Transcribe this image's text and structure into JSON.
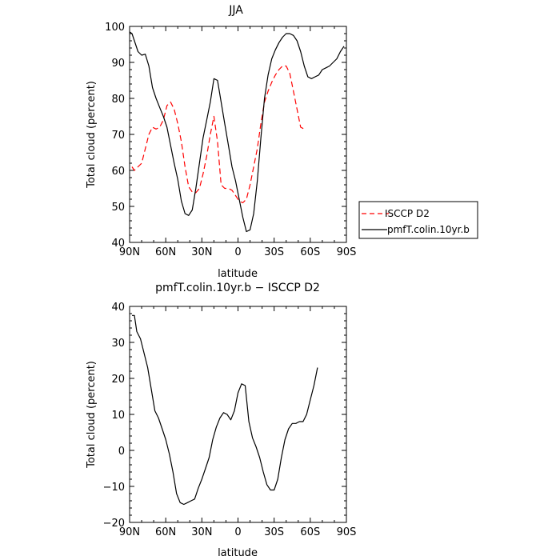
{
  "chart_data": [
    {
      "type": "line",
      "title": "JJA",
      "xlabel": "latitude",
      "ylabel": "Total cloud (percent)",
      "xlim": [
        90,
        -90
      ],
      "ylim": [
        40,
        100
      ],
      "x_ticks": [
        90,
        60,
        30,
        0,
        -30,
        -60,
        -90
      ],
      "x_tick_labels": [
        "90N",
        "60N",
        "30N",
        "0",
        "30S",
        "60S",
        "90S"
      ],
      "y_ticks": [
        40,
        50,
        60,
        70,
        80,
        90,
        100
      ],
      "y_tick_labels": [
        "40",
        "50",
        "60",
        "70",
        "80",
        "90",
        "100"
      ],
      "legend_position": "right, outside plot",
      "series": [
        {
          "name": "ISCCP D2",
          "color": "#ff0000",
          "dash": "dashed",
          "x": [
            88,
            86,
            83,
            80,
            77,
            74,
            71,
            68,
            65,
            62,
            59,
            56,
            53,
            50,
            47,
            44,
            41,
            38,
            35,
            32,
            29,
            26,
            23,
            20,
            17,
            14,
            11,
            8,
            5,
            2,
            -1,
            -4,
            -7,
            -10,
            -13,
            -16,
            -19,
            -22,
            -25,
            -28,
            -31,
            -34,
            -37,
            -40,
            -43,
            -46,
            -49,
            -52,
            -55,
            -58,
            -61,
            -64,
            -67
          ],
          "y": [
            61,
            60,
            61,
            62,
            66,
            70,
            72,
            71.5,
            72,
            74,
            78,
            79,
            77,
            73,
            68,
            61,
            55.5,
            54,
            53.8,
            55,
            59,
            64,
            70,
            75,
            68,
            56,
            55,
            55,
            54.5,
            53,
            51.5,
            51,
            52,
            56,
            61,
            66,
            73,
            79,
            82,
            84.5,
            86.5,
            88,
            89,
            89,
            87,
            82,
            77,
            72,
            71.5,
            null,
            null,
            null,
            null
          ]
        },
        {
          "name": "pmfT.colin.10yr.b",
          "color": "#000000",
          "dash": "solid",
          "x": [
            90,
            88,
            86,
            83,
            80,
            77,
            74,
            71,
            68,
            65,
            62,
            59,
            56,
            53,
            50,
            47,
            44,
            41,
            38,
            35,
            32,
            29,
            26,
            23,
            20,
            17,
            14,
            11,
            8,
            5,
            2,
            -1,
            -4,
            -7,
            -10,
            -13,
            -16,
            -19,
            -22,
            -25,
            -28,
            -31,
            -34,
            -37,
            -40,
            -43,
            -46,
            -49,
            -52,
            -55,
            -58,
            -61,
            -64,
            -67,
            -70,
            -73,
            -76,
            -79,
            -82,
            -85,
            -88
          ],
          "y": [
            98.5,
            98,
            96,
            93,
            92,
            92.3,
            89,
            83,
            80,
            77.5,
            75,
            72,
            67,
            62,
            57.5,
            51.5,
            48,
            47.5,
            49,
            55,
            62,
            69,
            74,
            79,
            85.5,
            85,
            79,
            73,
            67,
            61,
            57,
            52,
            47,
            43,
            43.5,
            48,
            57,
            69,
            80,
            86.5,
            91,
            93.5,
            95.5,
            97,
            98,
            98,
            97.5,
            96,
            93,
            89,
            86,
            85.5,
            86,
            86.5,
            88,
            88.5,
            89,
            90,
            91,
            93,
            94.5
          ]
        }
      ]
    },
    {
      "type": "line",
      "title": "pmfT.colin.10yr.b − ISCCP D2",
      "xlabel": "latitude",
      "ylabel": "Total cloud (percent)",
      "xlim": [
        90,
        -90
      ],
      "ylim": [
        -20,
        40
      ],
      "x_ticks": [
        90,
        60,
        30,
        0,
        -30,
        -60,
        -90
      ],
      "x_tick_labels": [
        "90N",
        "60N",
        "30N",
        "0",
        "30S",
        "60S",
        "90S"
      ],
      "y_ticks": [
        -20,
        -10,
        0,
        10,
        20,
        30,
        40
      ],
      "y_tick_labels": [
        "−20",
        "−10",
        "0",
        "10",
        "20",
        "30",
        "40"
      ],
      "series": [
        {
          "color": "#000000",
          "dash": "solid",
          "x": [
            88,
            86,
            84,
            81,
            78,
            75,
            72,
            69,
            66,
            63,
            60,
            57,
            54,
            51,
            48,
            45,
            42,
            39,
            36,
            33,
            30,
            27,
            24,
            21,
            18,
            15,
            12,
            9,
            6,
            3,
            0,
            -3,
            -6,
            -9,
            -12,
            -15,
            -18,
            -21,
            -24,
            -27,
            -30,
            -33,
            -36,
            -39,
            -42,
            -45,
            -48,
            -51,
            -54,
            -57,
            -60,
            -63,
            -66
          ],
          "y": [
            37.5,
            37.5,
            33,
            31,
            27,
            23,
            17,
            11,
            9,
            6,
            3,
            -1,
            -6,
            -12,
            -14.5,
            -15,
            -14.5,
            -14,
            -13.5,
            -10.5,
            -8,
            -5,
            -2,
            3,
            6.5,
            9,
            10.5,
            10,
            8.5,
            11,
            16,
            18.5,
            18,
            8,
            3.5,
            1,
            -2,
            -6,
            -9.5,
            -11,
            -11,
            -8,
            -2,
            3,
            6,
            7.5,
            7.5,
            8,
            8,
            10,
            14,
            18,
            23
          ]
        }
      ]
    }
  ],
  "legend": {
    "items": [
      {
        "label": "ISCCP D2",
        "color": "#ff0000",
        "dash": "dashed"
      },
      {
        "label": "pmfT.colin.10yr.b",
        "color": "#000000",
        "dash": "solid"
      }
    ]
  }
}
